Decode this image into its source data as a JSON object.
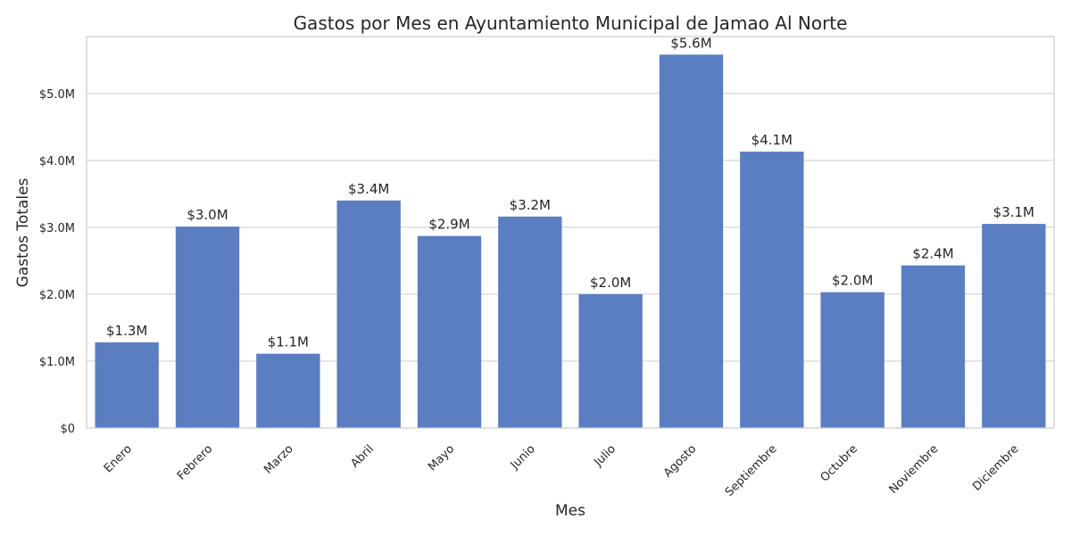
{
  "chart_data": {
    "type": "bar",
    "title": "Gastos por Mes en Ayuntamiento Municipal de Jamao Al Norte",
    "xlabel": "Mes",
    "ylabel": "Gastos Totales",
    "categories": [
      "Enero",
      "Febrero",
      "Marzo",
      "Abril",
      "Mayo",
      "Junio",
      "Julio",
      "Agosto",
      "Septiembre",
      "Octubre",
      "Noviembre",
      "Diciembre"
    ],
    "values": [
      1280000,
      3010000,
      1110000,
      3400000,
      2870000,
      3160000,
      2000000,
      5580000,
      4130000,
      2030000,
      2430000,
      3050000
    ],
    "value_labels": [
      "$1.3M",
      "$3.0M",
      "$1.1M",
      "$3.4M",
      "$2.9M",
      "$3.2M",
      "$2.0M",
      "$5.6M",
      "$4.1M",
      "$2.0M",
      "$2.4M",
      "$3.1M"
    ],
    "ylim": [
      0,
      5850000
    ],
    "yticks": [
      0,
      1000000,
      2000000,
      3000000,
      4000000,
      5000000
    ],
    "ytick_labels": [
      "$0",
      "$1.0M",
      "$2.0M",
      "$3.0M",
      "$4.0M",
      "$5.0M"
    ],
    "grid": true,
    "bar_color": "#5b7ec2"
  }
}
